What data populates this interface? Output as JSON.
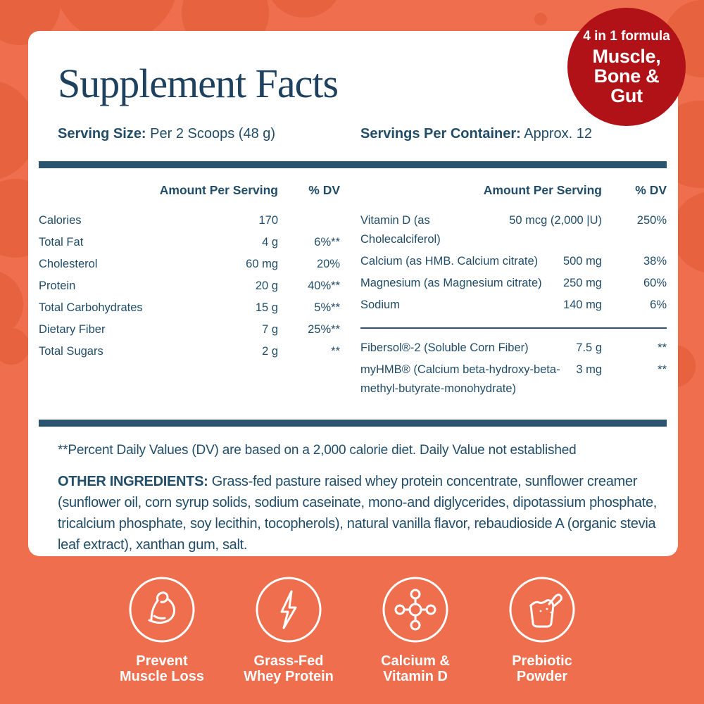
{
  "badge": {
    "line1": "4 in 1 formula",
    "line2": "Muscle,",
    "line3": "Bone &",
    "line4": "Gut"
  },
  "title": "Supplement Facts",
  "serving": {
    "size_label": "Serving Size:",
    "size_value": " Per 2 Scoops (48 g)",
    "container_label": "Servings Per Container:",
    "container_value": " Approx. 12"
  },
  "table_headers": {
    "amount": "Amount Per Serving",
    "dv": "% DV"
  },
  "left_table": {
    "rows": [
      {
        "label": "Calories",
        "amount": "170",
        "dv": ""
      },
      {
        "label": "Total Fat",
        "amount": "4 g",
        "dv": "6%**"
      },
      {
        "label": "Cholesterol",
        "amount": "60 mg",
        "dv": "20%"
      },
      {
        "label": "Protein",
        "amount": "20 g",
        "dv": "40%**"
      },
      {
        "label": "Total Carbohydrates",
        "amount": "15 g",
        "dv": "5%**"
      },
      {
        "label": "Dietary Fiber",
        "amount": "7 g",
        "dv": "25%**"
      },
      {
        "label": "Total Sugars",
        "amount": "2 g",
        "dv": "**"
      }
    ]
  },
  "right_table": {
    "rows_top": [
      {
        "label": "Vitamin D (as Cholecalciferol)",
        "amount": "50 mcg (2,000 |U)",
        "dv": "250%"
      },
      {
        "label": "Calcium (as HMB. Calcium citrate)",
        "amount": "500 mg",
        "dv": "38%"
      },
      {
        "label": "Magnesium (as Magnesium citrate)",
        "amount": "250 mg",
        "dv": "60%"
      },
      {
        "label": "Sodium",
        "amount": "140 mg",
        "dv": "6%"
      }
    ],
    "rows_bottom": [
      {
        "label": "Fibersol®-2 (Soluble Corn Fiber)",
        "amount": "7.5 g",
        "dv": "**"
      },
      {
        "label": "myHMB® (Calcium beta-hydroxy-beta-methyl-butyrate-monohydrate)",
        "amount": "3 mg",
        "dv": "**"
      }
    ]
  },
  "footnote": "**Percent Daily Values (DV) are based on a 2,000 calorie diet. Daily Value not established",
  "other_ingredients": {
    "label": "OTHER INGREDIENTS:",
    "text": " Grass-fed pasture raised whey protein concentrate, sunflower creamer (sunflower oil, corn syrup solids, sodium caseinate, mono-and diglycerides, dipotassium phosphate, tricalcium phosphate, soy lecithin, tocopherols), natural vanilla flavor, rebaudioside A (organic stevia leaf extract), xanthan gum, salt."
  },
  "features": [
    {
      "icon": "bicep-icon",
      "label_line1": "Prevent",
      "label_line2": "Muscle Loss"
    },
    {
      "icon": "lightning-icon",
      "label_line1": "Grass-Fed",
      "label_line2": "Whey Protein"
    },
    {
      "icon": "molecule-icon",
      "label_line1": "Calcium &",
      "label_line2": "Vitamin D"
    },
    {
      "icon": "scoop-icon",
      "label_line1": "Prebiotic",
      "label_line2": "Powder"
    }
  ],
  "colors": {
    "background": "#ef6e4e",
    "pattern_circle": "#e7633f",
    "navy_text": "#214d69",
    "divider_bar": "#2a5470",
    "badge_red": "#b01217",
    "card": "#ffffff",
    "icon_white": "#ffffff"
  }
}
